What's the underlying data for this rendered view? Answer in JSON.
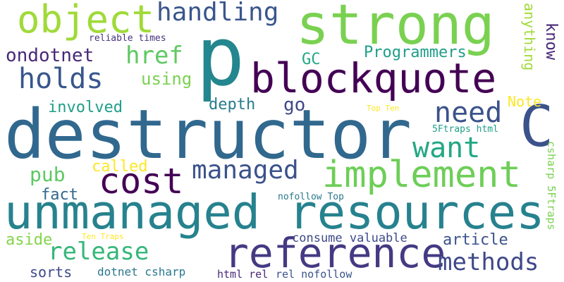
{
  "words": [
    {
      "id": "destructor",
      "text": "destructor",
      "color": "#31688e",
      "vertical": false
    },
    {
      "id": "unmanaged-resources",
      "text": "unmanaged resources",
      "color": "#26828e",
      "vertical": false
    },
    {
      "id": "strong",
      "text": "strong",
      "color": "#7ad151",
      "vertical": false
    },
    {
      "id": "p",
      "text": "p",
      "color": "#24868e",
      "vertical": false
    },
    {
      "id": "blockquote",
      "text": "blockquote",
      "color": "#440154",
      "vertical": false
    },
    {
      "id": "reference",
      "text": "reference",
      "color": "#443a83",
      "vertical": false
    },
    {
      "id": "implement",
      "text": "implement",
      "color": "#6ece58",
      "vertical": false
    },
    {
      "id": "cost",
      "text": "cost",
      "color": "#440154",
      "vertical": false
    },
    {
      "id": "object",
      "text": "object",
      "color": "#a0da39",
      "vertical": false
    },
    {
      "id": "c",
      "text": "C",
      "color": "#3b528b",
      "vertical": false
    },
    {
      "id": "handling",
      "text": "handling",
      "color": "#39568c",
      "vertical": false
    },
    {
      "id": "managed",
      "text": "managed",
      "color": "#3b528b",
      "vertical": false
    },
    {
      "id": "release",
      "text": "release",
      "color": "#35b779",
      "vertical": false
    },
    {
      "id": "methods",
      "text": "methods",
      "color": "#3f4889",
      "vertical": false
    },
    {
      "id": "need",
      "text": "need",
      "color": "#3b528b",
      "vertical": false
    },
    {
      "id": "want",
      "text": "want",
      "color": "#22a884",
      "vertical": false
    },
    {
      "id": "holds",
      "text": "holds",
      "color": "#39568c",
      "vertical": false
    },
    {
      "id": "href",
      "text": "href",
      "color": "#5ec962",
      "vertical": false
    },
    {
      "id": "ondotnet",
      "text": "ondotnet",
      "color": "#482878",
      "vertical": false
    },
    {
      "id": "programmers",
      "text": "Programmers",
      "color": "#1f9e89",
      "vertical": false
    },
    {
      "id": "anything",
      "text": "anything",
      "color": "#a0da39",
      "vertical": true
    },
    {
      "id": "know",
      "text": "know",
      "color": "#482878",
      "vertical": true
    },
    {
      "id": "gc",
      "text": "GC",
      "color": "#22a884",
      "vertical": false
    },
    {
      "id": "using",
      "text": "using",
      "color": "#7ad151",
      "vertical": false
    },
    {
      "id": "note",
      "text": "Note",
      "color": "#fde725",
      "vertical": false
    },
    {
      "id": "involved",
      "text": "involved",
      "color": "#1f9e89",
      "vertical": false
    },
    {
      "id": "depth",
      "text": "depth",
      "color": "#287c8e",
      "vertical": false
    },
    {
      "id": "go",
      "text": "go",
      "color": "#3e4989",
      "vertical": false
    },
    {
      "id": "pub",
      "text": "pub",
      "color": "#5ec962",
      "vertical": false
    },
    {
      "id": "called",
      "text": "called",
      "color": "#fde725",
      "vertical": false
    },
    {
      "id": "fact",
      "text": "fact",
      "color": "#31688e",
      "vertical": false
    },
    {
      "id": "article",
      "text": "article",
      "color": "#3b528b",
      "vertical": false
    },
    {
      "id": "consume-valuable",
      "text": "consume valuable",
      "color": "#3e4989",
      "vertical": false
    },
    {
      "id": "aside",
      "text": "aside",
      "color": "#84d44b",
      "vertical": false
    },
    {
      "id": "sorts",
      "text": "sorts",
      "color": "#3e4989",
      "vertical": false
    },
    {
      "id": "dotnet-csharp",
      "text": "dotnet csharp",
      "color": "#2a788e",
      "vertical": false
    },
    {
      "id": "html-rel",
      "text": "html rel",
      "color": "#482878",
      "vertical": false
    },
    {
      "id": "rel-nofollow",
      "text": "rel nofollow",
      "color": "#3b528b",
      "vertical": false
    },
    {
      "id": "nofollow-top",
      "text": "nofollow Top",
      "color": "#2a788e",
      "vertical": false
    },
    {
      "id": "csharp-5ftraps",
      "text": "csharp 5Ftraps",
      "color": "#7ad151",
      "vertical": true
    },
    {
      "id": "5ftraps-html",
      "text": "5Ftraps html",
      "color": "#1f9e89",
      "vertical": false
    },
    {
      "id": "top-ten",
      "text": "Top Ten",
      "color": "#fde725",
      "vertical": false
    },
    {
      "id": "ten-traps",
      "text": "Ten Traps",
      "color": "#fde725",
      "vertical": false
    },
    {
      "id": "reliable-times",
      "text": "reliable times",
      "color": "#46327e",
      "vertical": false
    }
  ]
}
